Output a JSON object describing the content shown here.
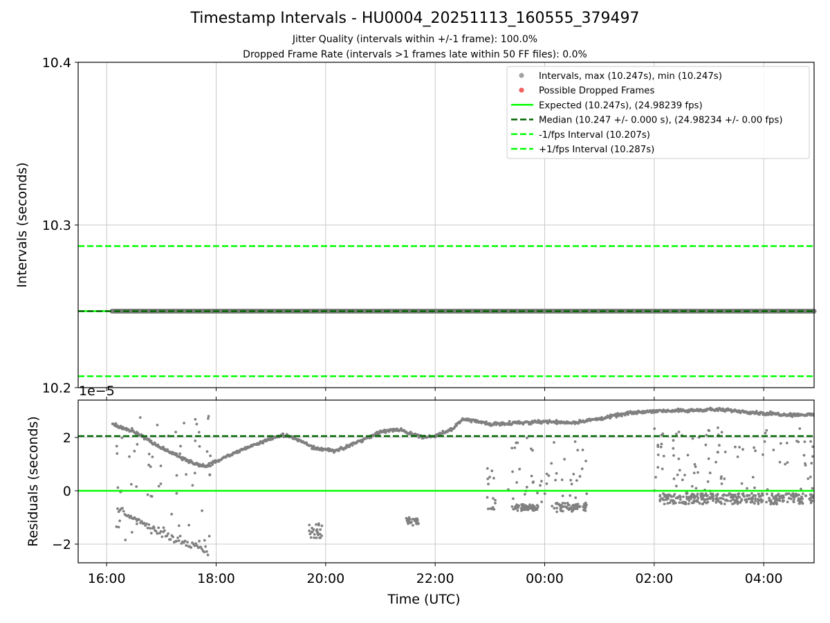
{
  "figure": {
    "title": "Timestamp Intervals - HU0004_20251113_160555_379497",
    "subtitle_1": "Jitter Quality (intervals within +/-1 frame): 100.0%",
    "subtitle_2": "Dropped Frame Rate (intervals >1 frames late within 50 FF files): 0.0%"
  },
  "colors": {
    "points": "#808080",
    "dropped": "#ff0000",
    "expected": "#00ff00",
    "median": "#006400",
    "interval_bounds": "#00ff00",
    "grid": "#c8c8c8"
  },
  "chart_data": [
    {
      "type": "line",
      "panel": "top",
      "ylabel": "Intervals (seconds)",
      "ylim": [
        10.2,
        10.4
      ],
      "yticks": [
        10.2,
        10.3,
        10.4
      ],
      "ytick_labels": [
        "10.2",
        "10.3",
        "10.4"
      ],
      "xlim_hours": [
        15.48,
        28.92
      ],
      "xticks_hours": [
        16,
        18,
        20,
        22,
        24,
        26,
        28
      ],
      "grid": true,
      "legend_position": "top-right",
      "legend": [
        {
          "label": "Intervals, max (10.247s), min (10.247s)",
          "style": "dot",
          "color": "#a0a0a0"
        },
        {
          "label": "Possible Dropped Frames",
          "style": "dot",
          "color": "#f06060"
        },
        {
          "label": "Expected (10.247s), (24.98239 fps)",
          "style": "solid",
          "color": "#00ff00"
        },
        {
          "label": "Median (10.247 +/- 0.000 s), (24.98234 +/- 0.00 fps)",
          "style": "dashed",
          "color": "#006400"
        },
        {
          "label": "-1/fps Interval (10.207s)",
          "style": "dashed",
          "color": "#00ff00"
        },
        {
          "label": "+1/fps Interval (10.287s)",
          "style": "dashed",
          "color": "#00ff00"
        }
      ],
      "series": [
        {
          "name": "Intervals",
          "x_range_hours": [
            16.1,
            28.92
          ],
          "y": 10.247
        },
        {
          "name": "Expected",
          "y": 10.247
        },
        {
          "name": "Median",
          "y": 10.247
        },
        {
          "name": "-1/fps Interval",
          "y": 10.207
        },
        {
          "name": "+1/fps Interval",
          "y": 10.287
        }
      ]
    },
    {
      "type": "scatter",
      "panel": "bottom",
      "ylabel": "Residuals (seconds)",
      "xlabel": "Time (UTC)",
      "exponent_label": "1e−5",
      "ylim": [
        -2.7,
        3.4
      ],
      "yticks": [
        -2,
        0,
        2
      ],
      "ytick_labels": [
        "−2",
        "0",
        "2"
      ],
      "xlim_hours": [
        15.48,
        28.92
      ],
      "xticks_hours": [
        16,
        18,
        20,
        22,
        24,
        26,
        28
      ],
      "xtick_labels": [
        "16:00",
        "18:00",
        "20:00",
        "22:00",
        "00:00",
        "02:00",
        "04:00"
      ],
      "grid": true,
      "lines": [
        {
          "name": "Expected",
          "y": 0
        },
        {
          "name": "Median",
          "y": 2.05
        }
      ],
      "trend_main": [
        [
          16.1,
          2.5
        ],
        [
          16.6,
          2.1
        ],
        [
          17.0,
          1.6
        ],
        [
          17.5,
          1.1
        ],
        [
          17.8,
          0.9
        ],
        [
          18.2,
          1.3
        ],
        [
          18.6,
          1.65
        ],
        [
          19.0,
          1.95
        ],
        [
          19.2,
          2.1
        ],
        [
          19.4,
          2.0
        ],
        [
          19.8,
          1.6
        ],
        [
          20.2,
          1.5
        ],
        [
          20.6,
          1.85
        ],
        [
          21.0,
          2.2
        ],
        [
          21.3,
          2.3
        ],
        [
          21.8,
          2.0
        ],
        [
          22.0,
          2.05
        ],
        [
          22.3,
          2.3
        ],
        [
          22.5,
          2.7
        ],
        [
          23.0,
          2.5
        ],
        [
          23.5,
          2.55
        ],
        [
          24.0,
          2.6
        ],
        [
          24.5,
          2.55
        ],
        [
          25.0,
          2.7
        ],
        [
          25.5,
          2.9
        ],
        [
          26.0,
          3.0
        ],
        [
          26.6,
          3.0
        ],
        [
          27.0,
          3.05
        ],
        [
          27.5,
          3.0
        ],
        [
          28.0,
          2.9
        ],
        [
          28.5,
          2.85
        ]
      ],
      "trend_low": [
        [
          16.2,
          -0.7
        ],
        [
          16.5,
          -1.0
        ],
        [
          16.8,
          -1.4
        ],
        [
          17.1,
          -1.7
        ],
        [
          17.4,
          -1.9
        ],
        [
          17.7,
          -2.1
        ],
        [
          17.85,
          -2.3
        ]
      ],
      "clusters": [
        {
          "x_range": [
            19.7,
            19.95
          ],
          "y_range": [
            -1.8,
            -1.2
          ]
        },
        {
          "x_range": [
            21.45,
            21.7
          ],
          "y_range": [
            -1.3,
            -1.0
          ]
        },
        {
          "x_range": [
            23.4,
            23.9
          ],
          "y_range": [
            -0.75,
            -0.5
          ]
        },
        {
          "x_range": [
            24.2,
            24.75
          ],
          "y_range": [
            -0.8,
            -0.45
          ]
        },
        {
          "x_range": [
            26.1,
            28.92
          ],
          "y_range": [
            -0.5,
            -0.1
          ]
        }
      ],
      "scatter_regions": [
        {
          "x_range": [
            16.15,
            17.9
          ],
          "y_range": [
            -2.0,
            2.8
          ]
        },
        {
          "x_range": [
            22.95,
            23.1
          ],
          "y_range": [
            -0.7,
            0.9
          ]
        },
        {
          "x_range": [
            23.3,
            24.8
          ],
          "y_range": [
            -0.7,
            2.0
          ]
        },
        {
          "x_range": [
            26.0,
            28.92
          ],
          "y_range": [
            -0.3,
            2.4
          ]
        }
      ]
    }
  ]
}
